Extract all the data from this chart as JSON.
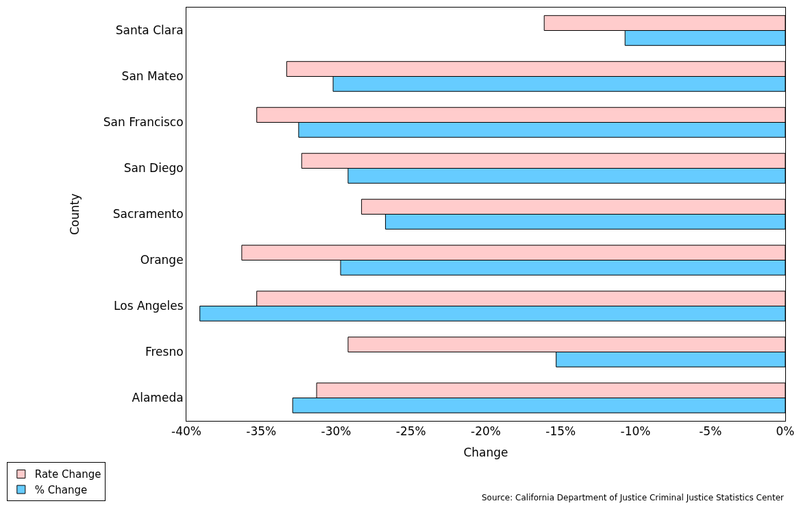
{
  "chart_data": {
    "type": "bar",
    "orientation": "horizontal",
    "xlabel": "Change",
    "ylabel": "County",
    "categories": [
      "Santa Clara",
      "San Mateo",
      "San Francisco",
      "San Diego",
      "Sacramento",
      "Orange",
      "Los Angeles",
      "Fresno",
      "Alameda"
    ],
    "series": [
      {
        "name": "Rate Change",
        "color": "#ffcccc",
        "values": [
          -16.1,
          -33.3,
          -35.3,
          -32.3,
          -28.3,
          -36.3,
          -35.3,
          -29.2,
          -31.3
        ]
      },
      {
        "name": "% Change",
        "color": "#66ccff",
        "values": [
          -10.7,
          -30.2,
          -32.5,
          -29.2,
          -26.7,
          -29.7,
          -39.1,
          -15.3,
          -32.9
        ]
      }
    ],
    "xlim": [
      -40,
      0
    ],
    "xticks": [
      {
        "value": -40,
        "label": "-40%"
      },
      {
        "value": -35,
        "label": "-35%"
      },
      {
        "value": -30,
        "label": "-30%"
      },
      {
        "value": -25,
        "label": "-25%"
      },
      {
        "value": -20,
        "label": "-20%"
      },
      {
        "value": -15,
        "label": "-15%"
      },
      {
        "value": -10,
        "label": "-10%"
      },
      {
        "value": -5,
        "label": "-5%"
      },
      {
        "value": 0,
        "label": "0%"
      }
    ],
    "legend": "bottom left",
    "annotations": [
      "Source: California Department of Justice Criminal Justice Statistics Center"
    ]
  }
}
